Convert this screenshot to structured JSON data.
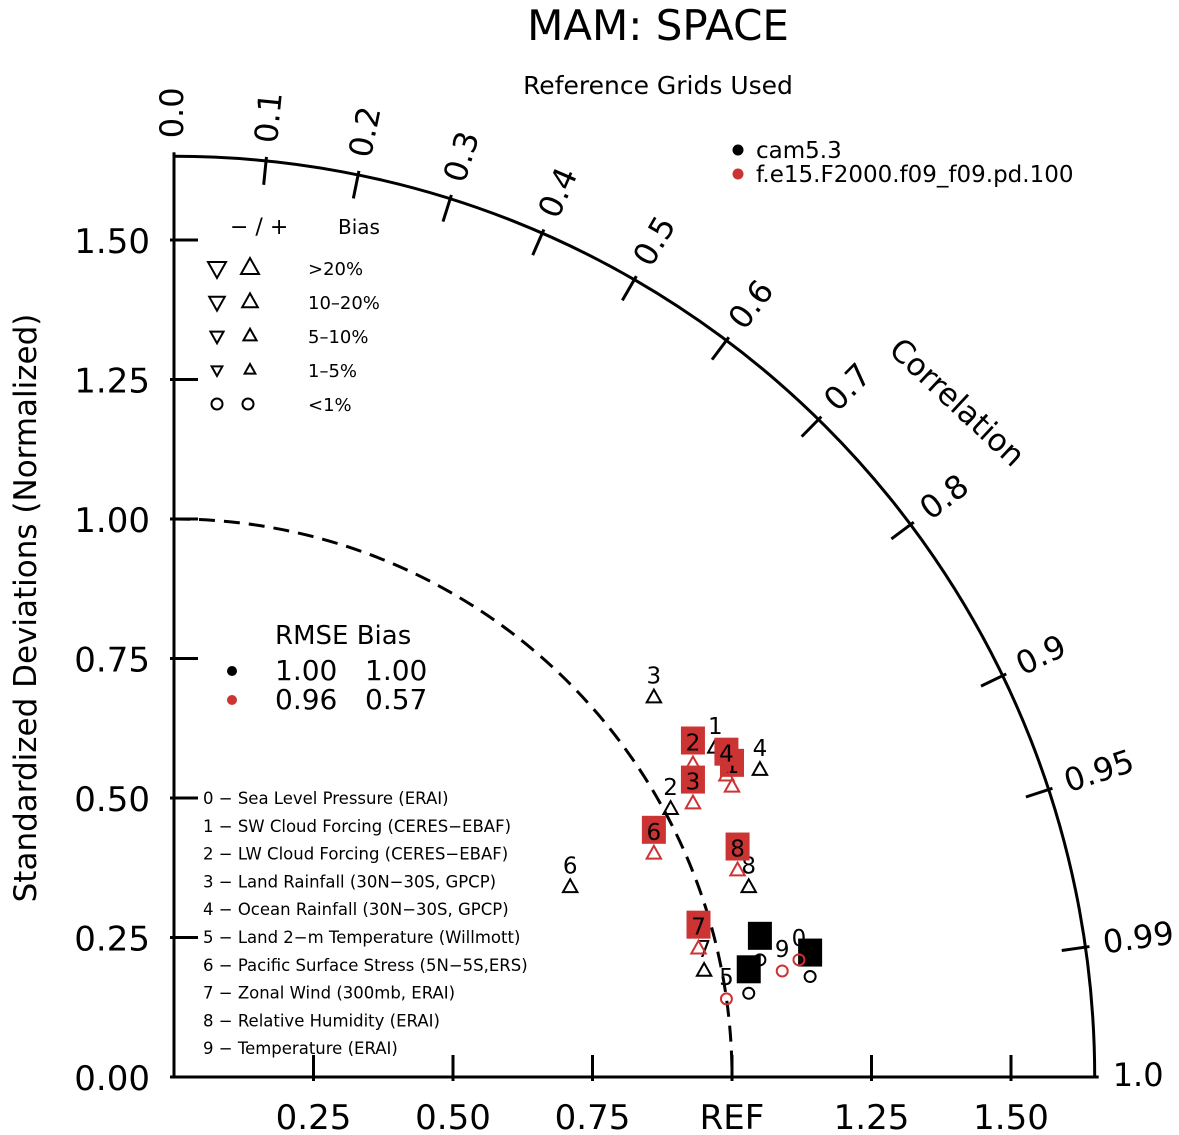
{
  "chart_data": {
    "type": "scatter",
    "subtype": "taylor-diagram",
    "title": "MAM: SPACE",
    "subtitle": "Reference Grids Used",
    "ylabel": "Standardized Deviations (Normalized)",
    "correlation_label": "Correlation",
    "xaxis_ref_label": "REF",
    "std_range": [
      0,
      1.65
    ],
    "x_ticks": [
      {
        "value": 0.25,
        "label": "0.25"
      },
      {
        "value": 0.5,
        "label": "0.50"
      },
      {
        "value": 0.75,
        "label": "0.75"
      },
      {
        "value": 1.0,
        "label": "REF"
      },
      {
        "value": 1.25,
        "label": "1.25"
      },
      {
        "value": 1.5,
        "label": "1.50"
      }
    ],
    "y_ticks": [
      {
        "value": 0.0,
        "label": "0.00"
      },
      {
        "value": 0.25,
        "label": "0.25"
      },
      {
        "value": 0.5,
        "label": "0.50"
      },
      {
        "value": 0.75,
        "label": "0.75"
      },
      {
        "value": 1.0,
        "label": "1.00"
      },
      {
        "value": 1.25,
        "label": "1.25"
      },
      {
        "value": 1.5,
        "label": "1.50"
      }
    ],
    "correlation_ticks": [
      {
        "value": 0.0,
        "label": "0.0"
      },
      {
        "value": 0.1,
        "label": "0.1"
      },
      {
        "value": 0.2,
        "label": "0.2"
      },
      {
        "value": 0.3,
        "label": "0.3"
      },
      {
        "value": 0.4,
        "label": "0.4"
      },
      {
        "value": 0.5,
        "label": "0.5"
      },
      {
        "value": 0.6,
        "label": "0.6"
      },
      {
        "value": 0.7,
        "label": "0.7"
      },
      {
        "value": 0.8,
        "label": "0.8"
      },
      {
        "value": 0.9,
        "label": "0.9"
      },
      {
        "value": 0.95,
        "label": "0.95"
      },
      {
        "value": 0.99,
        "label": "0.99"
      },
      {
        "value": 1.0,
        "label": "1.0"
      }
    ],
    "reference_std": 1.0,
    "legend": {
      "position": "top-right",
      "items": [
        {
          "label": "cam5.3",
          "color": "#000000"
        },
        {
          "label": "f.e15.F2000.f09_f09.pd.100",
          "color": "#cc3333"
        }
      ]
    },
    "bias_legend": {
      "title_symbols": "− / +",
      "title": "Bias",
      "rows": [
        {
          "label": ">20%",
          "size": 1.0,
          "shape": "triangle"
        },
        {
          "label": "10–20%",
          "size": 0.85,
          "shape": "triangle"
        },
        {
          "label": "5–10%",
          "size": 0.7,
          "shape": "triangle"
        },
        {
          "label": "1–5%",
          "size": 0.55,
          "shape": "triangle"
        },
        {
          "label": "<1%",
          "size": 0.6,
          "shape": "circle"
        }
      ]
    },
    "score_table": {
      "header": "RMSE Bias",
      "rows": [
        {
          "color": "#000000",
          "rmse": "1.00",
          "bias": "1.00"
        },
        {
          "color": "#cc3333",
          "rmse": "0.96",
          "bias": "0.57"
        }
      ]
    },
    "variables": [
      "0 − Sea Level Pressure (ERAI)",
      "1 − SW Cloud Forcing (CERES−EBAF)",
      "2 − LW Cloud Forcing (CERES−EBAF)",
      "3 − Land Rainfall (30N−30S, GPCP)",
      "4 − Ocean Rainfall (30N−30S, GPCP)",
      "5 − Land 2−m Temperature (Willmott)",
      "6 − Pacific Surface Stress (5N−5S,ERS)",
      "7 − Zonal Wind (300mb, ERAI)",
      "8 − Relative Humidity (ERAI)",
      "9 − Temperature (ERAI)"
    ],
    "series": [
      {
        "name": "cam5.3",
        "color": "#000000",
        "points": [
          {
            "id": "0",
            "x": 1.05,
            "y": 0.21,
            "marker": "circle",
            "boxed": true
          },
          {
            "id": "1",
            "x": 0.97,
            "y": 0.59,
            "marker": "triangle-up",
            "boxed": false
          },
          {
            "id": "2",
            "x": 0.89,
            "y": 0.48,
            "marker": "triangle-up",
            "boxed": false
          },
          {
            "id": "3",
            "x": 0.86,
            "y": 0.68,
            "marker": "triangle-up",
            "boxed": false
          },
          {
            "id": "4",
            "x": 1.05,
            "y": 0.55,
            "marker": "triangle-up",
            "boxed": false
          },
          {
            "id": "5",
            "x": 1.03,
            "y": 0.15,
            "marker": "circle",
            "boxed": true
          },
          {
            "id": "6",
            "x": 0.71,
            "y": 0.34,
            "marker": "triangle-up",
            "boxed": false
          },
          {
            "id": "7",
            "x": 0.95,
            "y": 0.19,
            "marker": "triangle-up",
            "boxed": false
          },
          {
            "id": "8",
            "x": 1.03,
            "y": 0.34,
            "marker": "triangle-up",
            "boxed": false
          },
          {
            "id": "9",
            "x": 1.14,
            "y": 0.18,
            "marker": "circle",
            "boxed": true
          }
        ]
      },
      {
        "name": "f.e15.F2000.f09_f09.pd.100",
        "color": "#cc3333",
        "points": [
          {
            "id": "0",
            "x": 1.12,
            "y": 0.21,
            "marker": "circle",
            "boxed": false
          },
          {
            "id": "1",
            "x": 1.0,
            "y": 0.52,
            "marker": "triangle-up",
            "boxed": true
          },
          {
            "id": "2",
            "x": 0.93,
            "y": 0.56,
            "marker": "triangle-up",
            "boxed": true
          },
          {
            "id": "3",
            "x": 0.93,
            "y": 0.49,
            "marker": "triangle-up",
            "boxed": true
          },
          {
            "id": "4",
            "x": 0.99,
            "y": 0.54,
            "marker": "triangle-up",
            "boxed": true
          },
          {
            "id": "5",
            "x": 0.99,
            "y": 0.14,
            "marker": "circle",
            "boxed": false
          },
          {
            "id": "6",
            "x": 0.86,
            "y": 0.4,
            "marker": "triangle-up",
            "boxed": true
          },
          {
            "id": "7",
            "x": 0.94,
            "y": 0.23,
            "marker": "triangle-up",
            "boxed": true
          },
          {
            "id": "8",
            "x": 1.01,
            "y": 0.37,
            "marker": "triangle-up",
            "boxed": true
          },
          {
            "id": "9",
            "x": 1.09,
            "y": 0.19,
            "marker": "circle",
            "boxed": false
          }
        ]
      }
    ]
  }
}
